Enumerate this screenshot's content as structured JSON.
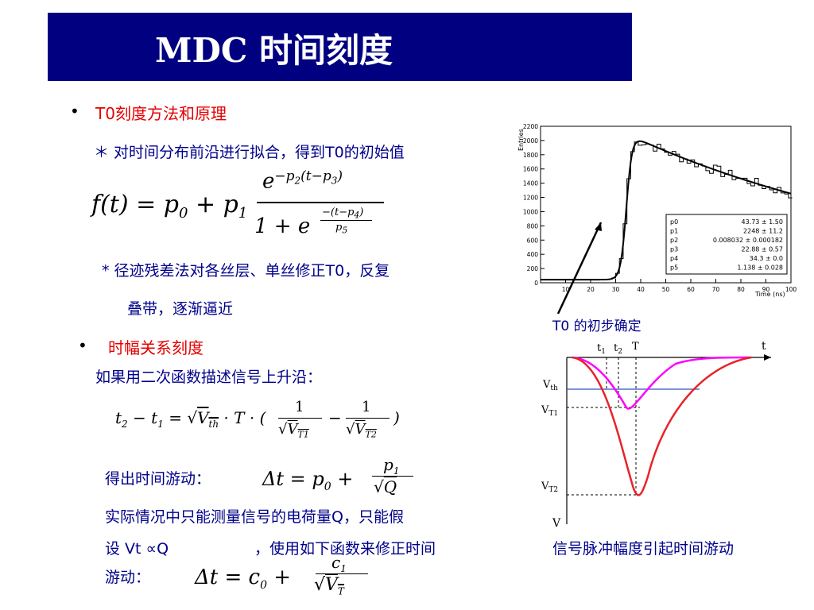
{
  "title": "MDC  时间刻度",
  "section1": {
    "heading": "T0刻度方法和原理",
    "line1": "＊  对时间分布前沿进行拟合，得到T0的初始值",
    "formula": "f(t) = p0 + p1 · e^(−p2(t−p3)) / (1 + e^(−(t−p4)/p5))",
    "line2a": "* 径迹残差法对各丝层、单丝修正T0，反复",
    "line2b": "叠带，逐渐逼近"
  },
  "section2": {
    "heading": "时幅关系刻度",
    "line1": "如果用二次函数描述信号上升沿：",
    "formula1": "t2 − t1 = √Vth · T · (1/√VT1 − 1/√VT2)",
    "derive_label": "得出时间游动：",
    "formula2": "Δt = p0 + p1/√Q",
    "line_a": "实际情况中只能测量信号的电荷量Q，只能假",
    "line_b_1": "设  Vt ∝Q",
    "line_b_2": "，使用如下函数来修正时间",
    "line_c": "游动：",
    "formula3": "Δt = c0 + c1/√VT"
  },
  "hist": {
    "ylabel": "Entries",
    "xlabel": "Time (ns)",
    "y_ticks": [
      "0",
      "200",
      "400",
      "600",
      "800",
      "1000",
      "1200",
      "1400",
      "1600",
      "1800",
      "2000",
      "2200"
    ],
    "x_ticks": [
      "10",
      "20",
      "30",
      "40",
      "50",
      "60",
      "70",
      "80",
      "90",
      "100"
    ],
    "stats": [
      {
        "name": "p0",
        "value": "43.73 ± 1.50"
      },
      {
        "name": "p1",
        "value": "2248 ± 11.2"
      },
      {
        "name": "p2",
        "value": "0.008032 ± 0.000182"
      },
      {
        "name": "p3",
        "value": "22.88 ± 0.57"
      },
      {
        "name": "p4",
        "value": "34.3 ± 0.0"
      },
      {
        "name": "p5",
        "value": "1.138 ± 0.028"
      }
    ],
    "caption": "T0 的初步确定"
  },
  "pulse": {
    "t1": "t1",
    "t2": "t2",
    "T": "T",
    "t": "t",
    "vth": "Vth",
    "vt1": "VT1",
    "vt2": "VT2",
    "v": "V",
    "caption": "信号脉冲幅度引起时间游动"
  },
  "colors": {
    "title_bg": "#000080",
    "heading": "#e60000",
    "body_text": "#00008b",
    "pulse_large": "#e8232a",
    "pulse_small": "#ff00ff",
    "threshold": "#3050c0"
  }
}
